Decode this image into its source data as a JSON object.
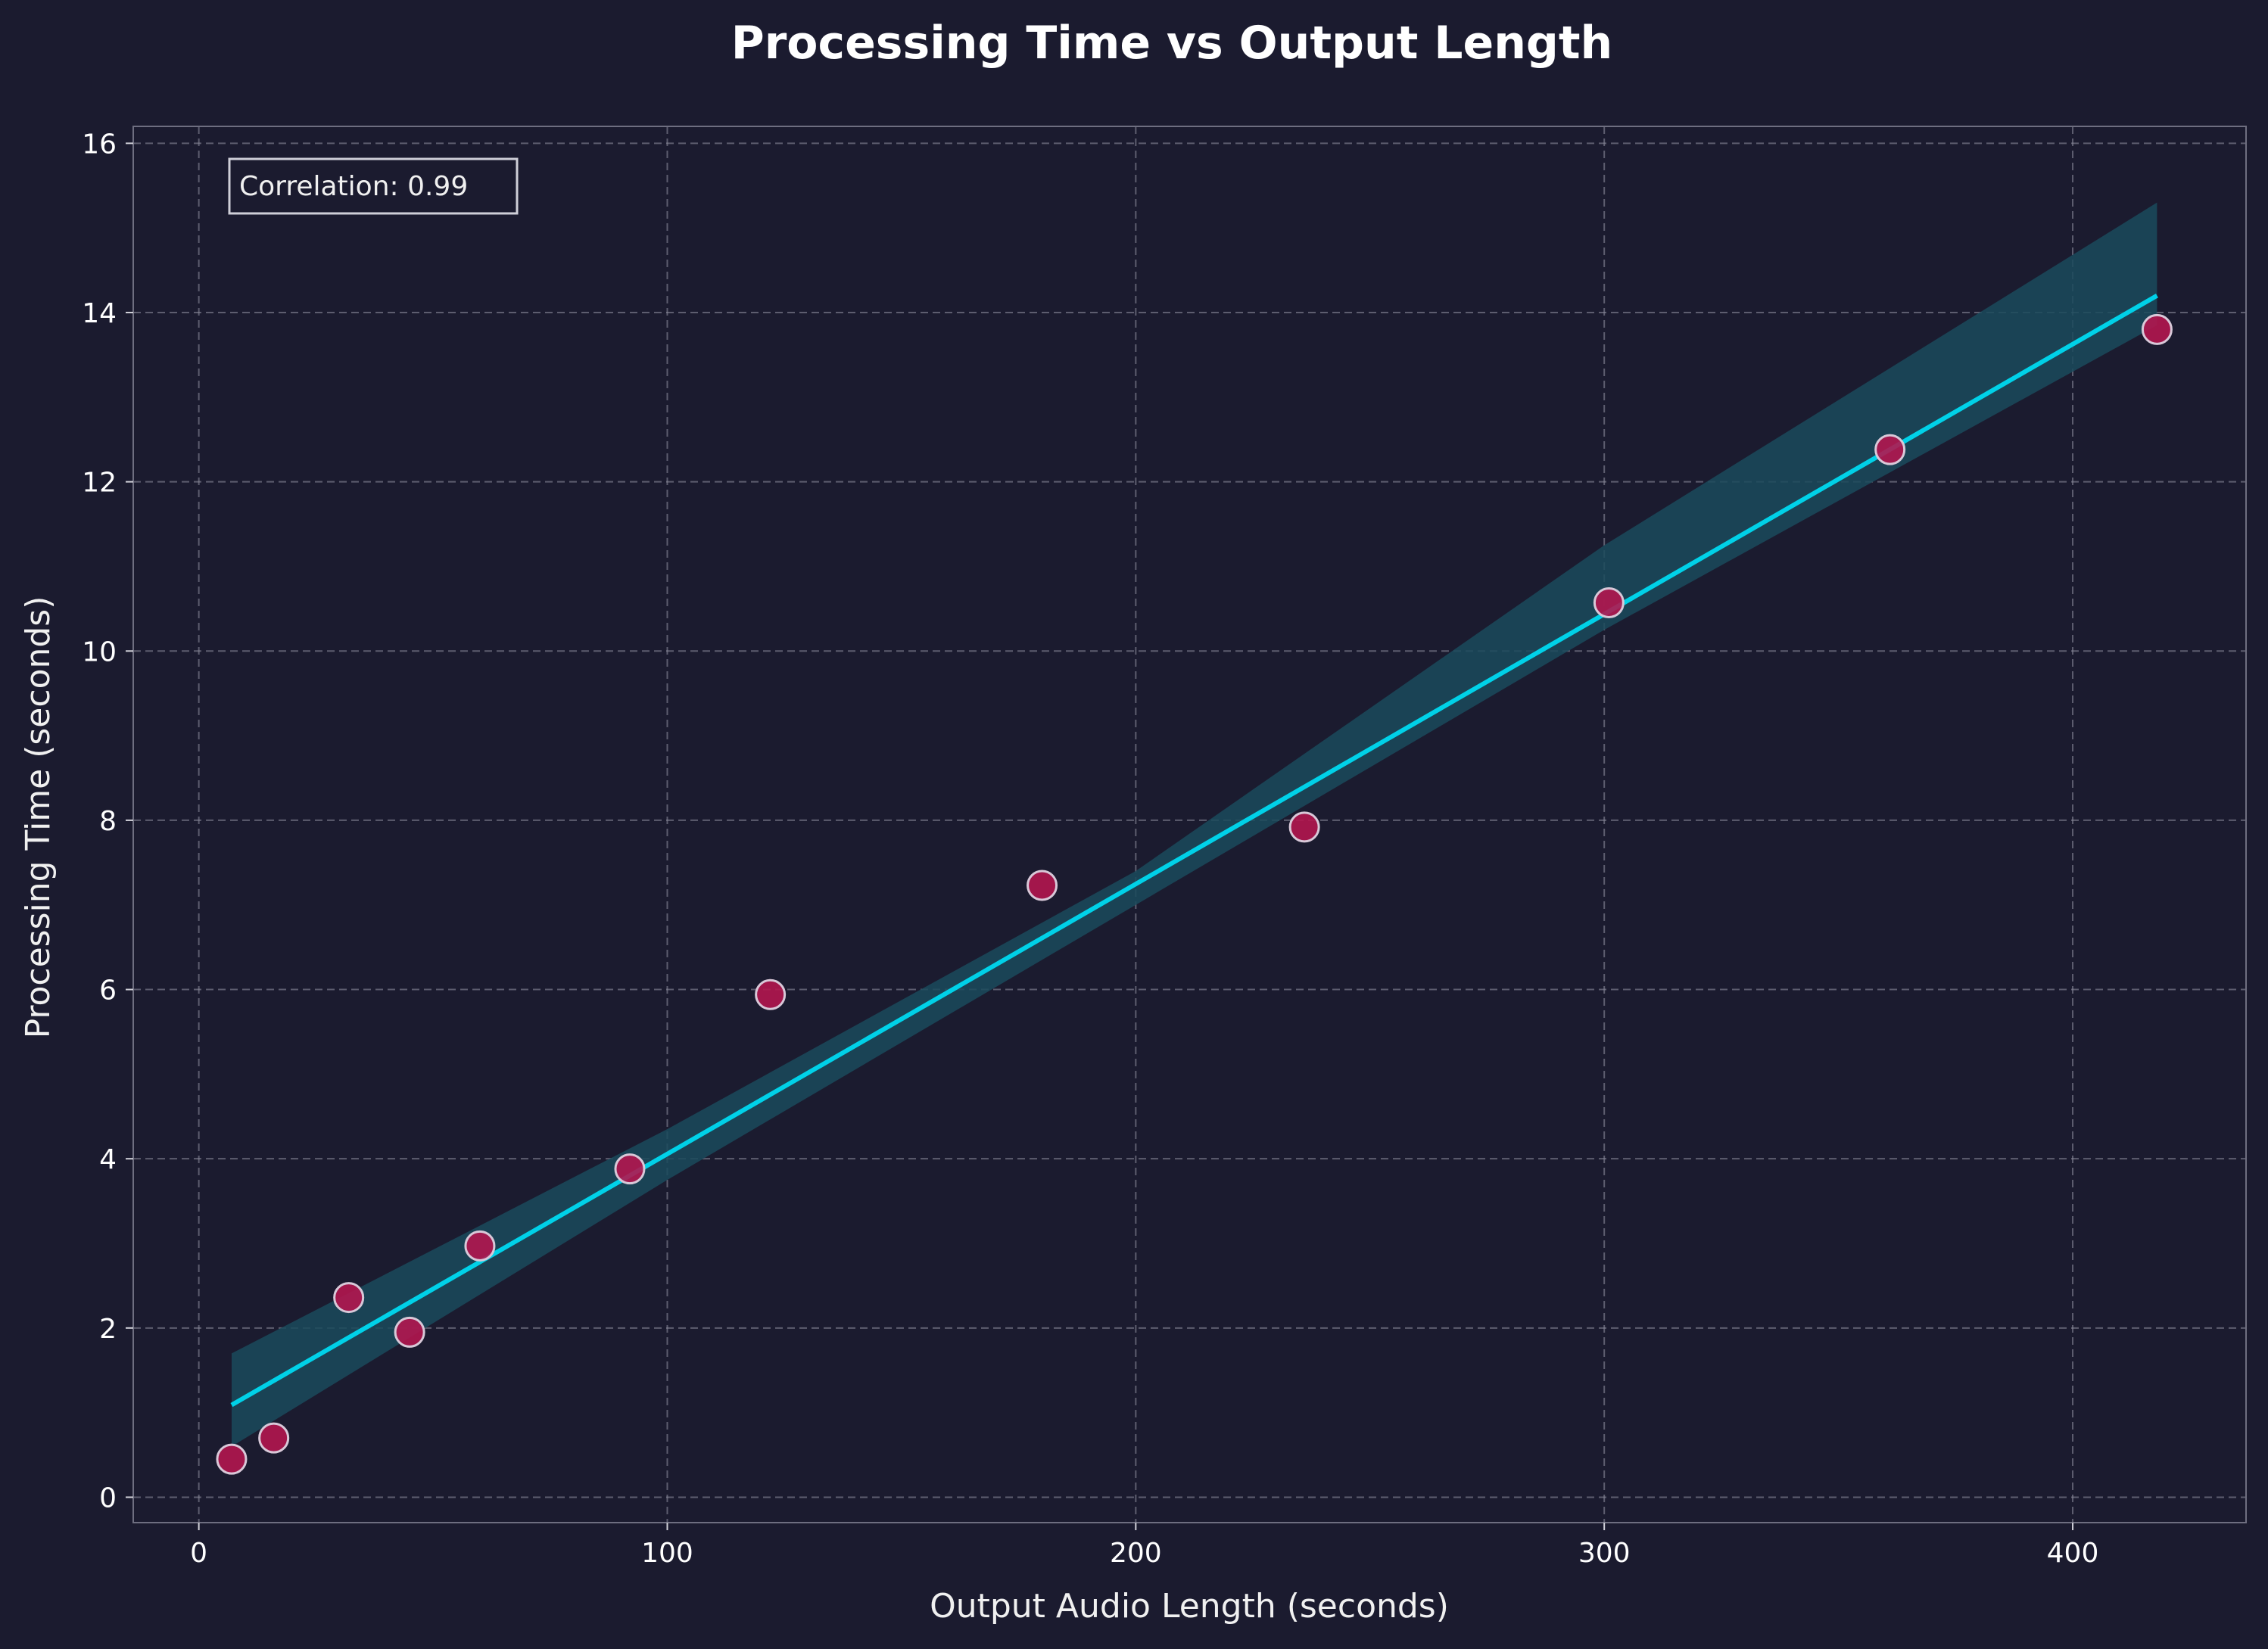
{
  "chart_data": {
    "type": "scatter",
    "title": "Processing Time vs Output Length",
    "xlabel": "Output Audio Length (seconds)",
    "ylabel": "Processing Time (seconds)",
    "xlim": [
      -14,
      437
    ],
    "ylim": [
      -0.3,
      16.2
    ],
    "xticks": [
      0,
      100,
      200,
      300,
      400
    ],
    "yticks": [
      0,
      2,
      4,
      6,
      8,
      10,
      12,
      14,
      16
    ],
    "grid": true,
    "points": [
      {
        "x": 7,
        "y": 0.45
      },
      {
        "x": 16,
        "y": 0.7
      },
      {
        "x": 32,
        "y": 2.36
      },
      {
        "x": 45,
        "y": 1.95
      },
      {
        "x": 60,
        "y": 2.97
      },
      {
        "x": 92,
        "y": 3.88
      },
      {
        "x": 122,
        "y": 5.94
      },
      {
        "x": 180,
        "y": 7.23
      },
      {
        "x": 236,
        "y": 7.92
      },
      {
        "x": 301,
        "y": 10.57
      },
      {
        "x": 361,
        "y": 12.38
      },
      {
        "x": 418,
        "y": 13.8
      }
    ],
    "regression": {
      "x_start": 7,
      "y_start": 1.09,
      "x_end": 418,
      "y_end": 14.2,
      "band_upper": [
        [
          7,
          1.7
        ],
        [
          100,
          4.35
        ],
        [
          200,
          7.4
        ],
        [
          300,
          11.25
        ],
        [
          418,
          15.3
        ]
      ],
      "band_lower": [
        [
          418,
          13.85
        ],
        [
          300,
          10.25
        ],
        [
          200,
          7.0
        ],
        [
          100,
          3.75
        ],
        [
          7,
          0.6
        ]
      ]
    },
    "annotation": "Correlation: 0.99",
    "colors": {
      "background": "#1b1b2f",
      "point_fill": "#b3164f",
      "point_edge": "#d8c8d8",
      "line": "#00d1e8",
      "band": "#1a4a5c",
      "text": "#ffffff",
      "grid": "#8a8a9a"
    }
  }
}
